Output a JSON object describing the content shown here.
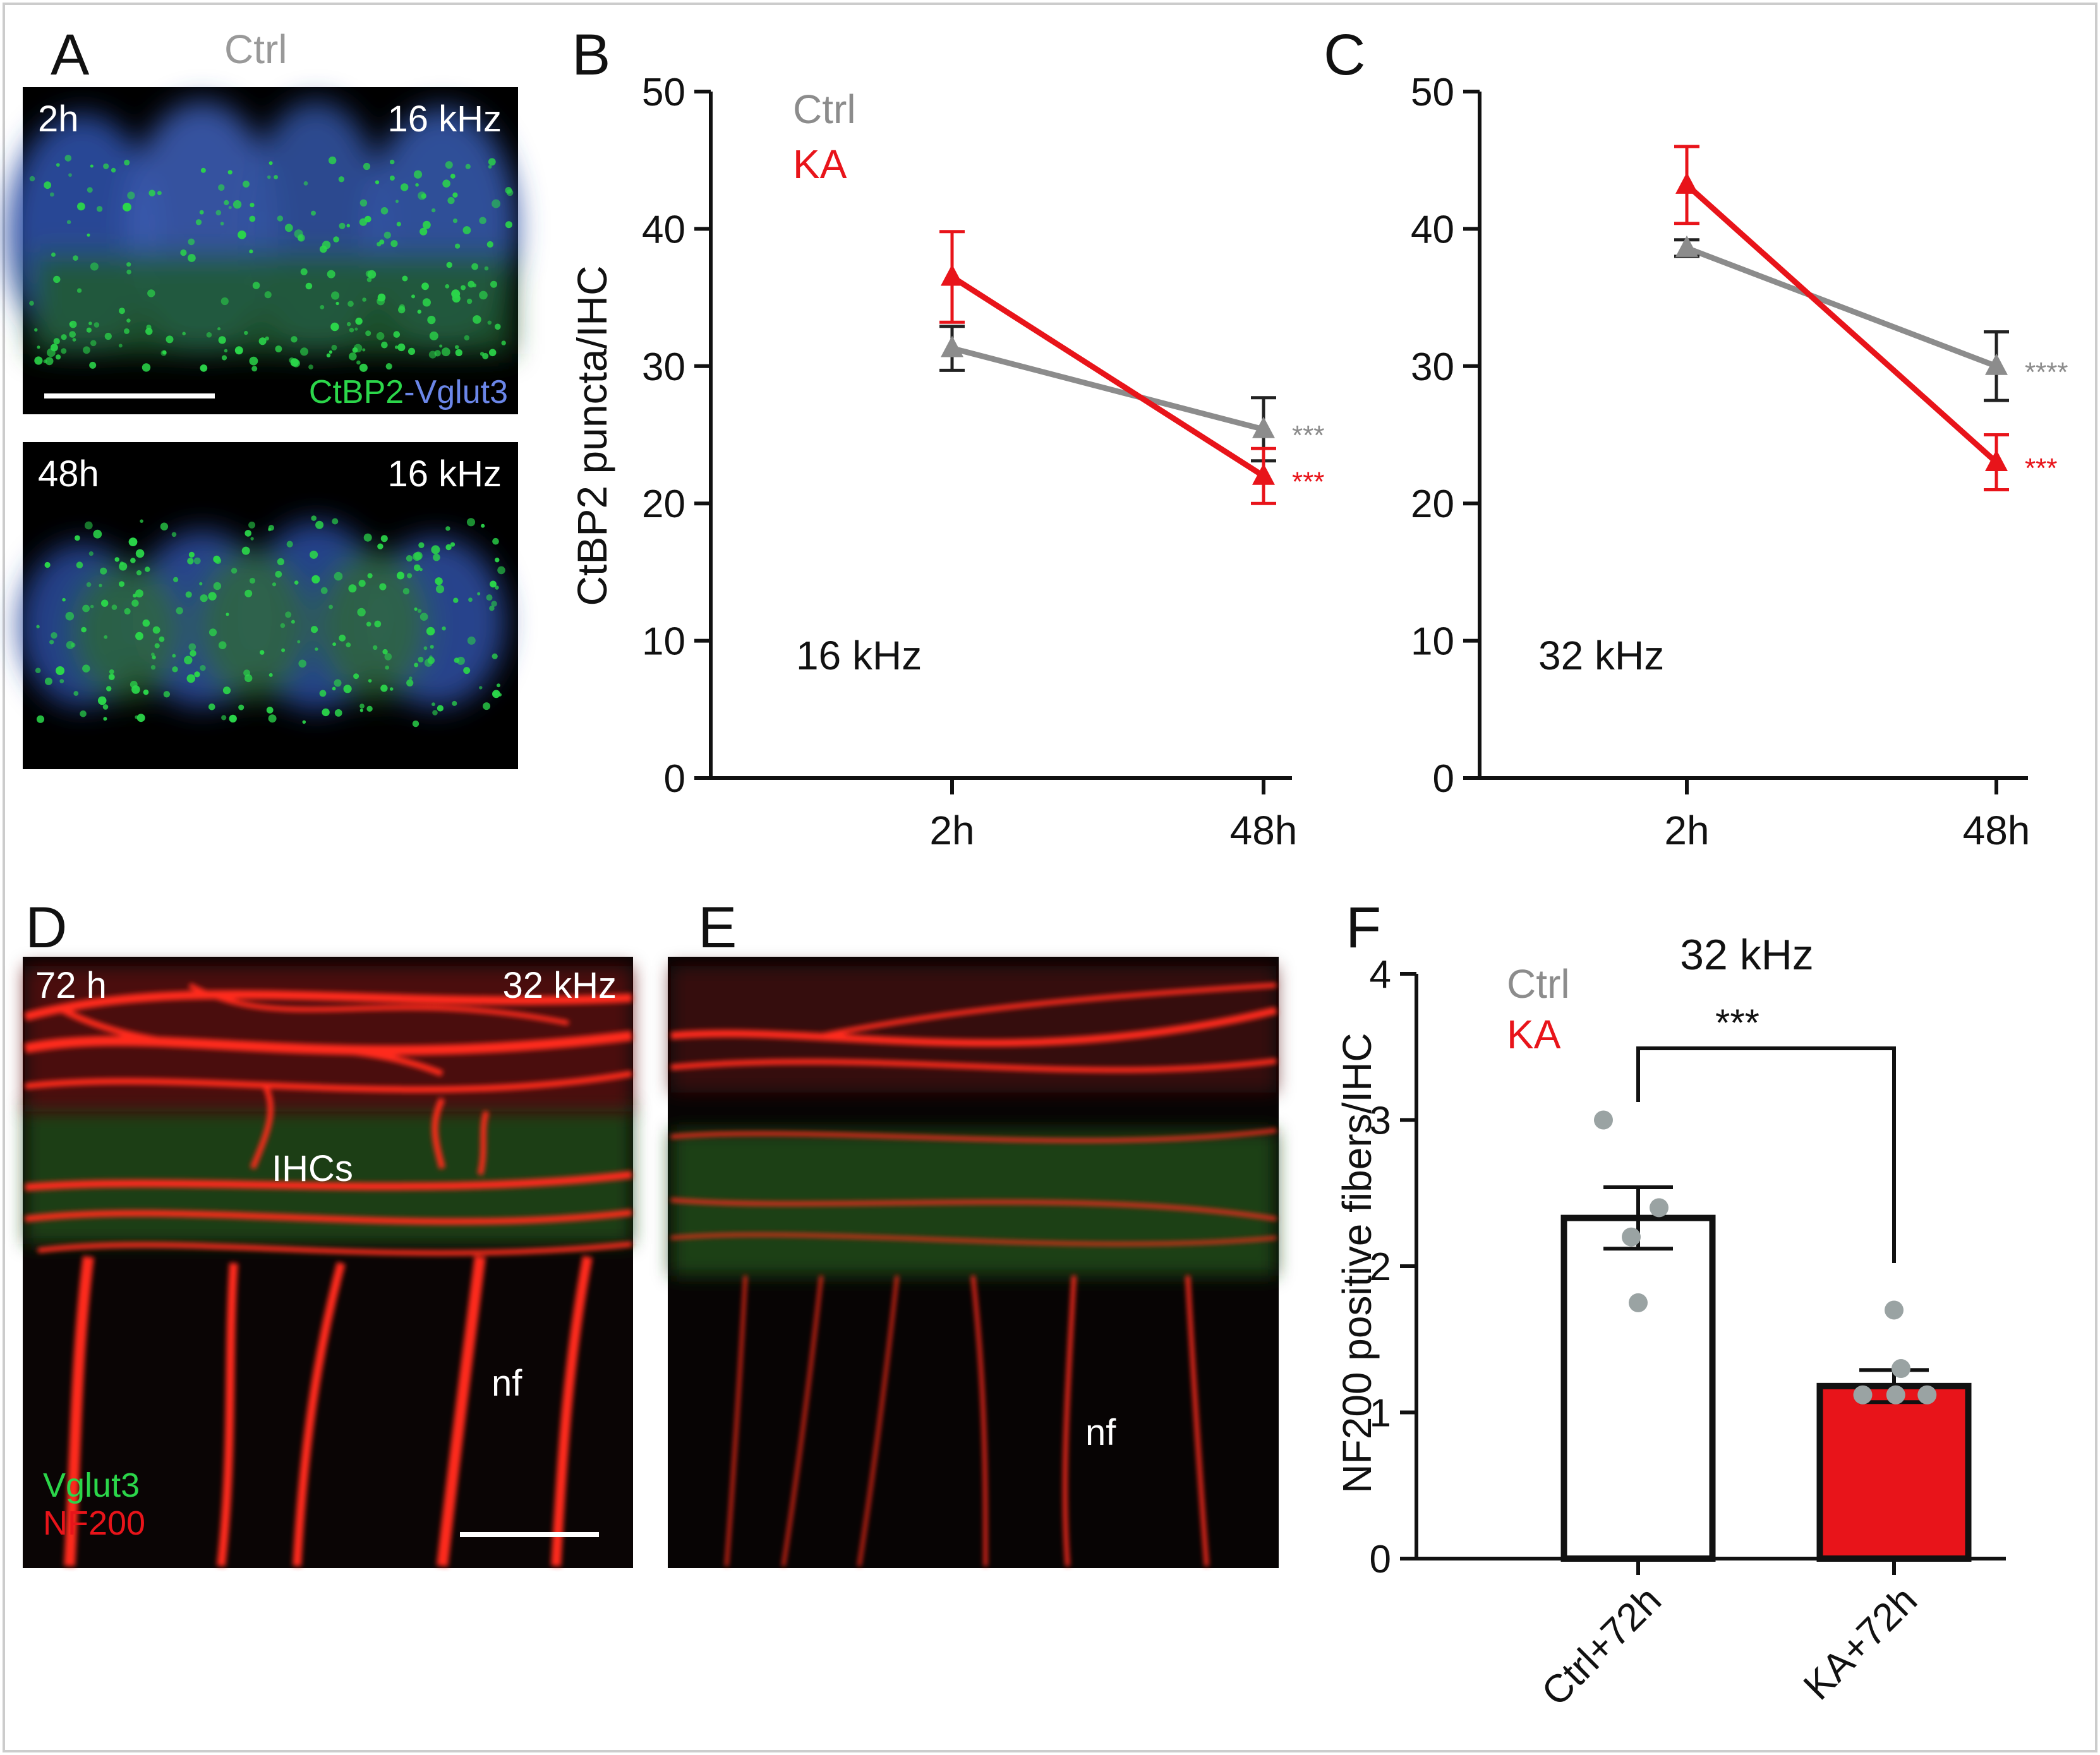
{
  "colors": {
    "ctrl": "#8c8c8c",
    "ka": "#e8141a",
    "green": "#2bd64a",
    "blue": "#5b6fd8",
    "axis": "#111111"
  },
  "panel_labels": {
    "a": "A",
    "b": "B",
    "c": "C",
    "d": "D",
    "e": "E",
    "f": "F"
  },
  "panel_a": {
    "title": "Ctrl",
    "top_time": "2h",
    "top_freq": "16 kHz",
    "stain_green": "CtBP2",
    "stain_dash": "-",
    "stain_blue": "Vglut3",
    "bottom_time": "48h",
    "bottom_freq": "16 kHz"
  },
  "panel_d": {
    "time": "72 h",
    "freq": "32 kHz",
    "label_ihcs": "IHCs",
    "label_nf": "nf",
    "stain_green": "Vglut3",
    "stain_red": "NF200"
  },
  "panel_e": {
    "label_nf": "nf"
  },
  "chart_data": [
    {
      "panel": "B",
      "type": "line",
      "ylabel": "CtBP2 puncta/IHC",
      "ylim": [
        0,
        50
      ],
      "yticks": [
        "0",
        "10",
        "20",
        "30",
        "40",
        "50"
      ],
      "categories": [
        "2h",
        "48h"
      ],
      "annotation": "16 kHz",
      "legend": [
        "Ctrl",
        "KA"
      ],
      "series": [
        {
          "name": "Ctrl",
          "values": [
            31.3,
            25.4
          ],
          "errors": [
            1.6,
            2.3
          ],
          "sig": "***"
        },
        {
          "name": "KA",
          "values": [
            36.5,
            22.0
          ],
          "errors": [
            3.3,
            2.0
          ],
          "sig": "***"
        }
      ]
    },
    {
      "panel": "C",
      "type": "line",
      "ylabel": "",
      "ylim": [
        0,
        50
      ],
      "yticks": [
        "0",
        "10",
        "20",
        "30",
        "40",
        "50"
      ],
      "categories": [
        "2h",
        "48h"
      ],
      "annotation": "32 kHz",
      "series": [
        {
          "name": "Ctrl",
          "values": [
            38.6,
            30.0
          ],
          "errors": [
            0.6,
            2.5
          ],
          "sig": "****"
        },
        {
          "name": "KA",
          "values": [
            43.2,
            23.0
          ],
          "errors": [
            2.8,
            2.0
          ],
          "sig": "***"
        }
      ]
    },
    {
      "panel": "F",
      "type": "bar",
      "title": "32 kHz",
      "ylabel": "NF200 positive fibers/IHC",
      "ylim": [
        0,
        4
      ],
      "yticks": [
        "0",
        "1",
        "2",
        "3",
        "4"
      ],
      "categories": [
        "Ctrl+72h",
        "KA+72h"
      ],
      "legend": [
        "Ctrl",
        "KA"
      ],
      "values": [
        2.33,
        1.18
      ],
      "errors": [
        0.21,
        0.11
      ],
      "points": [
        [
          3.0,
          2.4,
          2.2,
          1.75
        ],
        [
          1.7,
          1.3,
          1.12,
          1.12,
          1.12
        ]
      ],
      "significance": "***"
    }
  ]
}
